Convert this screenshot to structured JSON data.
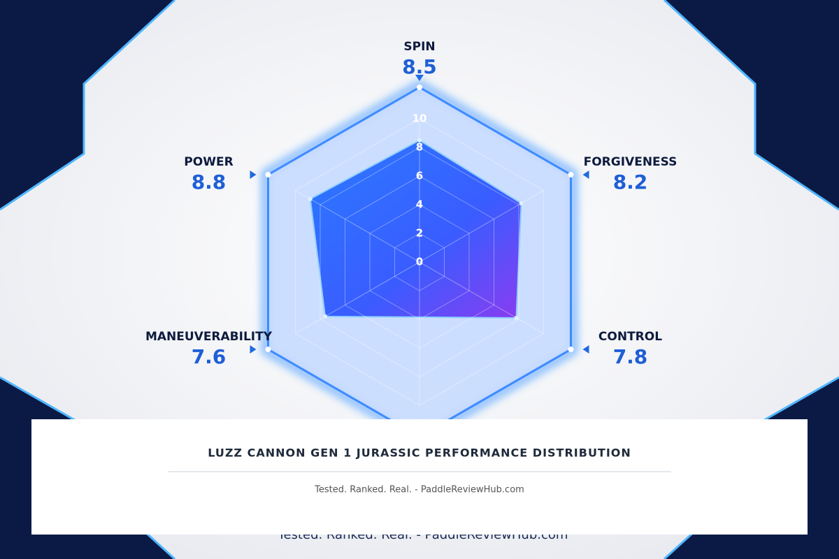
{
  "chart_data": {
    "type": "radar",
    "categories": [
      "SPIN",
      "FORGIVENESS",
      "CONTROL",
      null,
      "MANEUVERABILITY",
      "POWER"
    ],
    "values": [
      8.5,
      8.2,
      7.8,
      null,
      7.6,
      8.8
    ],
    "rlim": [
      0,
      10
    ],
    "rticks": [
      0,
      2,
      4,
      6,
      8,
      10
    ],
    "color": "#2f6bff",
    "title": "LUZZ CANNON GEN 1 JURASSIC PERFORMANCE DISTRIBUTION",
    "subtitle": "Tested. Ranked. Real. - PaddleReviewHub.com"
  }
}
